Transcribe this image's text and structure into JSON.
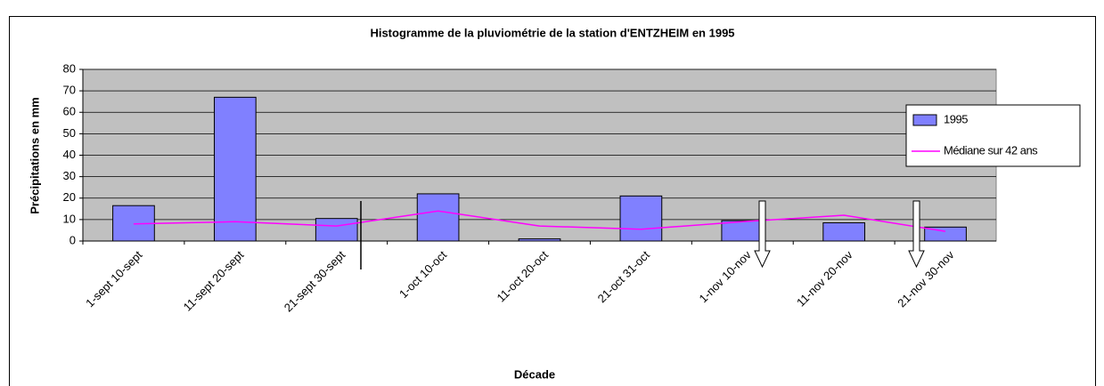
{
  "chart_data": {
    "type": "bar",
    "title": "Histogramme de la pluviométrie de la station d'ENTZHEIM en 1995",
    "xlabel": "Décade",
    "ylabel": "Précipitations en mm",
    "categories": [
      "1-sept 10-sept",
      "11-sept 20-sept",
      "21-sept 30-sept",
      "1-oct 10-oct",
      "11-oct 20-oct",
      "21-oct 31-oct",
      "1-nov 10-nov",
      "11-nov 20-nov",
      "21-nov 30-nov"
    ],
    "series": [
      {
        "name": "1995",
        "type": "bar",
        "color": "#8080ff",
        "values": [
          16.5,
          67,
          10.5,
          22,
          1,
          21,
          9.5,
          8.5,
          6.5
        ]
      },
      {
        "name": "Médiane sur 42 ans",
        "type": "line",
        "color": "#ff00ff",
        "values": [
          8,
          9,
          7,
          14,
          7,
          5.5,
          9,
          12,
          4.5
        ]
      }
    ],
    "ylim": [
      0,
      80
    ],
    "yticks": [
      0,
      10,
      20,
      30,
      40,
      50,
      60,
      70,
      80
    ],
    "grid": true,
    "legend": "right"
  }
}
